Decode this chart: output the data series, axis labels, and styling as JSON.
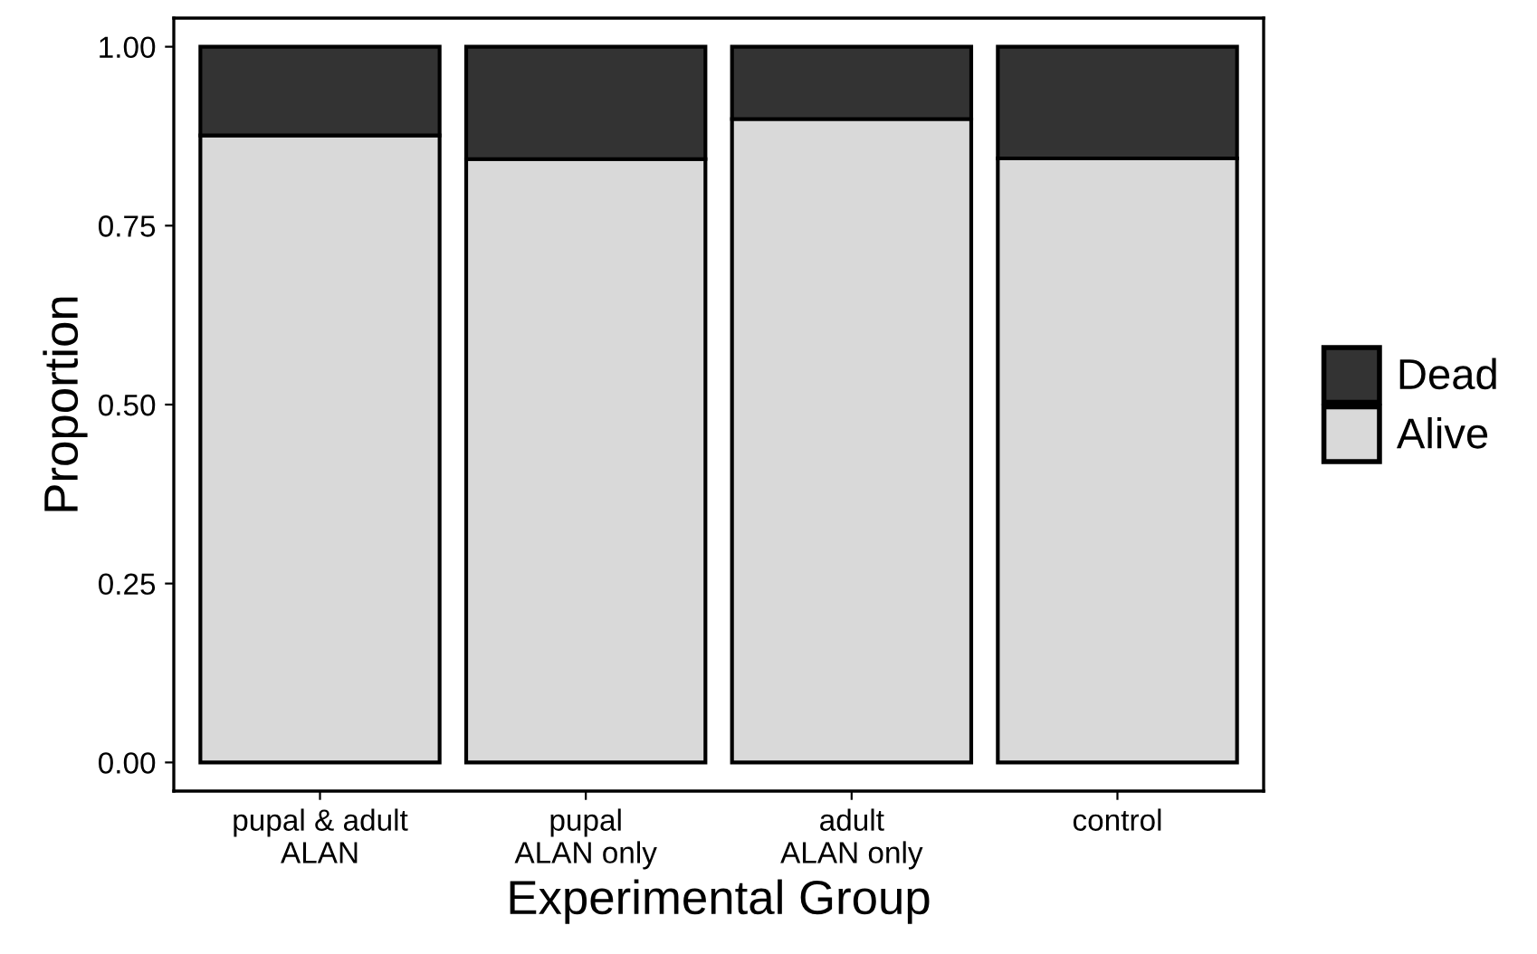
{
  "chart_data": {
    "type": "bar",
    "stacked": true,
    "xlabel": "Experimental Group",
    "ylabel": "Proportion",
    "categories": [
      "pupal & adult\nALAN",
      "pupal\nALAN only",
      "adult\nALAN only",
      "control"
    ],
    "series": [
      {
        "name": "Alive",
        "color": "#d9d9d9",
        "values": [
          0.876,
          0.843,
          0.899,
          0.844
        ]
      },
      {
        "name": "Dead",
        "color": "#333333",
        "values": [
          0.124,
          0.157,
          0.101,
          0.156
        ]
      }
    ],
    "ylim": [
      -0.04,
      1.04
    ],
    "yticks": [
      {
        "value": 0,
        "label": "0.00"
      },
      {
        "value": 0.25,
        "label": "0.25"
      },
      {
        "value": 0.5,
        "label": "0.50"
      },
      {
        "value": 0.75,
        "label": "0.75"
      },
      {
        "value": 1,
        "label": "1.00"
      }
    ],
    "grid": false,
    "legend": "right"
  }
}
